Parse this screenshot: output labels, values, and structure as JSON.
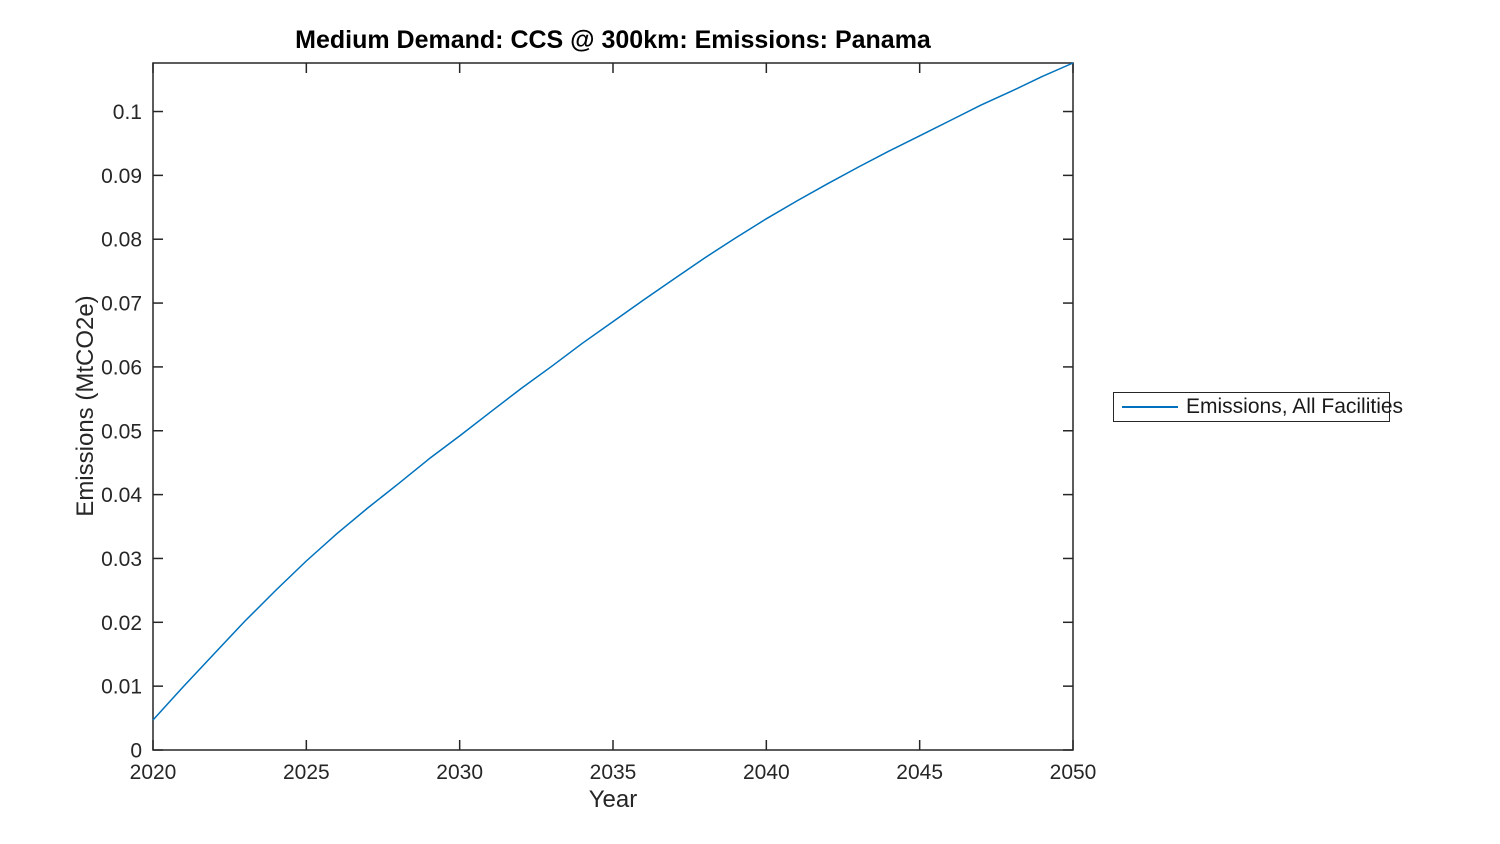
{
  "figure": {
    "background_color": "#ffffff",
    "axis_color": "#262626",
    "title_color": "#000000"
  },
  "chart_data": {
    "type": "line",
    "title": "Medium Demand: CCS @ 300km: Emissions: Panama",
    "xlabel": "Year",
    "ylabel": "Emissions (MtCO2e)",
    "xlim": [
      2020,
      2050
    ],
    "ylim": [
      0,
      0.1076
    ],
    "grid": false,
    "legend_position": "right-outside",
    "x_ticks": [
      2020,
      2025,
      2030,
      2035,
      2040,
      2045,
      2050
    ],
    "x_tick_labels": [
      "2020",
      "2025",
      "2030",
      "2035",
      "2040",
      "2045",
      "2050"
    ],
    "y_ticks": [
      0,
      0.01,
      0.02,
      0.03,
      0.04,
      0.05,
      0.06,
      0.07,
      0.08,
      0.09,
      0.1
    ],
    "y_tick_labels": [
      "0",
      "0.01",
      "0.02",
      "0.03",
      "0.04",
      "0.05",
      "0.06",
      "0.07",
      "0.08",
      "0.09",
      "0.1"
    ],
    "series": [
      {
        "name": "Emissions, All Facilities",
        "color": "#0072BD",
        "x": [
          2020,
          2021,
          2022,
          2023,
          2024,
          2025,
          2026,
          2027,
          2028,
          2029,
          2030,
          2031,
          2032,
          2033,
          2034,
          2035,
          2036,
          2037,
          2038,
          2039,
          2040,
          2041,
          2042,
          2043,
          2044,
          2045,
          2046,
          2047,
          2048,
          2049,
          2050
        ],
        "y": [
          0.0047,
          0.01,
          0.0151,
          0.0202,
          0.025,
          0.0296,
          0.0339,
          0.0379,
          0.0417,
          0.0456,
          0.0492,
          0.0529,
          0.0566,
          0.0601,
          0.0637,
          0.0671,
          0.0705,
          0.0738,
          0.0771,
          0.0802,
          0.0832,
          0.086,
          0.0887,
          0.0913,
          0.0938,
          0.0962,
          0.0986,
          0.101,
          0.1032,
          0.1055,
          0.1076
        ]
      }
    ]
  },
  "legend": {
    "entries": [
      {
        "label": "Emissions, All Facilities",
        "line_color": "#0072BD"
      }
    ]
  }
}
